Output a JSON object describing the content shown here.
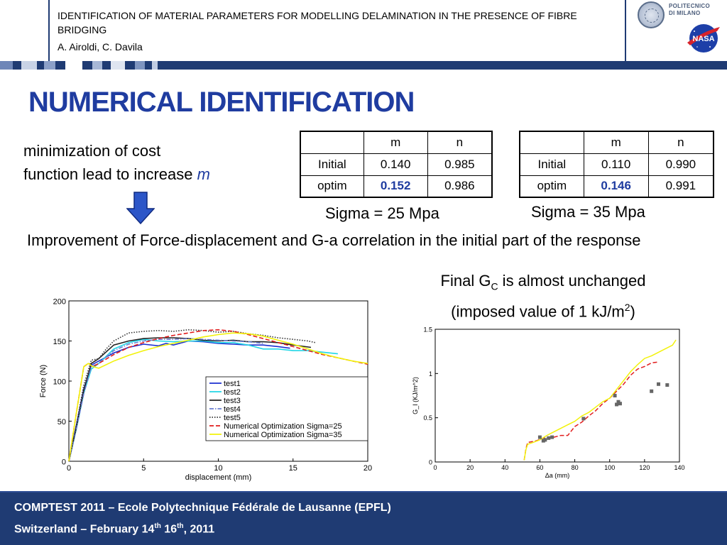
{
  "header": {
    "title": "IDENTIFICATION OF MATERIAL PARAMETERS FOR MODELLING DELAMINATION IN THE PRESENCE OF FIBRE BRIDGING",
    "authors": "A. Airoldi, C. Davila",
    "logo_polimi_line1": "POLITECNICO",
    "logo_polimi_line2": "DI MILANO",
    "logo_nasa": "NASA"
  },
  "slide": {
    "title": "NUMERICAL IDENTIFICATION",
    "minimization_line1": "minimization of cost",
    "minimization_line2": "function lead to increase ",
    "minimization_var": "m",
    "improvement": "Improvement of Force-displacement and G-a correlation in the initial part of the response",
    "final_gc_pre": "Final G",
    "final_gc_sub": "C",
    "final_gc_post": " is almost unchanged",
    "final_gc_line2_pre": "(imposed value of 1 kJ/m",
    "final_gc_line2_sup": "2",
    "final_gc_line2_post": ")"
  },
  "tables": [
    {
      "header": [
        "",
        "m",
        "n"
      ],
      "rows": [
        [
          "Initial",
          "0.140",
          "0.985"
        ],
        [
          "optim",
          "0.152",
          "0.986"
        ]
      ],
      "caption": "Sigma = 25 Mpa"
    },
    {
      "header": [
        "",
        "m",
        "n"
      ],
      "rows": [
        [
          "Initial",
          "0.110",
          "0.990"
        ],
        [
          "optim",
          "0.146",
          "0.991"
        ]
      ],
      "caption": "Sigma = 35 Mpa"
    }
  ],
  "chart_data": [
    {
      "type": "line",
      "xlabel": "displacement (mm)",
      "ylabel": "Force (N)",
      "xlim": [
        0,
        20
      ],
      "ylim": [
        0,
        200
      ],
      "xticks": [
        "0",
        "5",
        "10",
        "15",
        "20"
      ],
      "yticks": [
        "0",
        "50",
        "100",
        "150",
        "200"
      ],
      "legend_position": "bottom-right",
      "series": [
        {
          "name": "test1",
          "color": "#1d2fd0",
          "dash": "solid",
          "x": [
            0,
            0.5,
            1.0,
            1.5,
            2,
            3,
            4,
            5,
            6,
            6.5,
            7,
            8,
            9,
            10,
            11,
            12,
            13,
            14,
            14.8
          ],
          "y": [
            0,
            45,
            90,
            120,
            125,
            135,
            142,
            146,
            144,
            147,
            145,
            150,
            149,
            147,
            146,
            145,
            145,
            143,
            141
          ]
        },
        {
          "name": "test2",
          "color": "#22d6e6",
          "dash": "solid",
          "x": [
            0,
            0.5,
            1.0,
            1.5,
            2,
            3,
            4,
            5,
            6,
            7,
            8,
            9,
            10,
            11,
            12,
            13,
            14,
            15,
            16,
            17,
            18
          ],
          "y": [
            0,
            40,
            85,
            115,
            122,
            140,
            148,
            152,
            150,
            149,
            150,
            150,
            148,
            148,
            145,
            140,
            140,
            138,
            138,
            136,
            134
          ]
        },
        {
          "name": "test3",
          "color": "#222222",
          "dash": "solid",
          "x": [
            0,
            0.5,
            1.0,
            1.5,
            2,
            3,
            4,
            5,
            6,
            7,
            8,
            9,
            10,
            11,
            12,
            13,
            14,
            15,
            16.2
          ],
          "y": [
            0,
            42,
            88,
            122,
            128,
            145,
            150,
            153,
            154,
            154,
            153,
            151,
            150,
            151,
            149,
            149,
            148,
            145,
            142
          ]
        },
        {
          "name": "test4",
          "color": "#6a7fd0",
          "dash": "dashdot",
          "x": [
            0,
            0.5,
            1.0,
            1.5,
            2,
            3,
            4,
            5,
            6,
            7,
            8,
            9,
            10,
            11,
            12,
            13
          ],
          "y": [
            0,
            40,
            84,
            118,
            122,
            138,
            146,
            150,
            152,
            152,
            153,
            152,
            151,
            150,
            149,
            147
          ]
        },
        {
          "name": "test5",
          "color": "#333333",
          "dash": "dotted",
          "x": [
            0,
            0.5,
            1.0,
            1.5,
            2,
            2.5,
            3,
            4,
            5,
            6,
            7,
            8,
            9,
            10,
            11,
            12,
            13,
            14,
            15,
            16,
            16.5
          ],
          "y": [
            0,
            45,
            95,
            126,
            128,
            140,
            150,
            160,
            162,
            163,
            162,
            164,
            163,
            161,
            162,
            159,
            157,
            154,
            152,
            150,
            148
          ]
        },
        {
          "name": "Numerical Optimization Sigma=25",
          "color": "#e11d1d",
          "dash": "dashed",
          "x": [
            0,
            0.5,
            1.0,
            1.3,
            1.6,
            2,
            3,
            4,
            5,
            6,
            7,
            8,
            9,
            10,
            11,
            12,
            13,
            14,
            15,
            16,
            17,
            18,
            19,
            20
          ],
          "y": [
            0,
            60,
            118,
            122,
            118,
            122,
            133,
            142,
            148,
            153,
            157,
            160,
            163,
            164,
            162,
            158,
            153,
            148,
            143,
            138,
            133,
            129,
            125,
            121
          ]
        },
        {
          "name": "Numerical Optimization Sigma=35",
          "color": "#f2f20a",
          "dash": "solid",
          "x": [
            0,
            0.5,
            1.0,
            1.3,
            1.6,
            2,
            3,
            4,
            5,
            6,
            7,
            8,
            9,
            10,
            11,
            12,
            13,
            14,
            15,
            16,
            17,
            18,
            19,
            20
          ],
          "y": [
            0,
            60,
            118,
            122,
            118,
            116,
            125,
            132,
            138,
            143,
            147,
            151,
            155,
            158,
            160,
            159,
            156,
            151,
            146,
            140,
            134,
            129,
            125,
            122
          ]
        }
      ]
    },
    {
      "type": "scatter",
      "xlabel": "Δa (mm)",
      "ylabel": "G_I (KJ/m^2)",
      "xlim": [
        0,
        140
      ],
      "ylim": [
        0,
        1.5
      ],
      "xticks": [
        "0",
        "20",
        "40",
        "60",
        "80",
        "100",
        "120",
        "140"
      ],
      "yticks": [
        "0",
        "0.5",
        "1",
        "1.5"
      ],
      "series": [
        {
          "color": "#e11d1d",
          "dash": "dashed",
          "x": [
            51,
            52,
            53,
            58,
            62,
            68,
            72,
            76,
            80,
            84,
            88,
            92,
            96,
            100,
            104,
            108,
            112,
            116,
            120,
            124,
            128
          ],
          "y": [
            0.02,
            0.15,
            0.22,
            0.24,
            0.27,
            0.28,
            0.3,
            0.3,
            0.4,
            0.45,
            0.52,
            0.58,
            0.66,
            0.72,
            0.8,
            0.88,
            0.98,
            1.05,
            1.08,
            1.12,
            1.13
          ]
        },
        {
          "color": "#f2f20a",
          "dash": "solid",
          "x": [
            51,
            52,
            53,
            56,
            60,
            64,
            68,
            72,
            76,
            80,
            84,
            88,
            92,
            96,
            100,
            104,
            108,
            112,
            116,
            120,
            124,
            128,
            132,
            136,
            138
          ],
          "y": [
            0.02,
            0.14,
            0.2,
            0.22,
            0.25,
            0.3,
            0.34,
            0.38,
            0.42,
            0.46,
            0.52,
            0.56,
            0.62,
            0.68,
            0.72,
            0.82,
            0.92,
            1.02,
            1.1,
            1.17,
            1.2,
            1.24,
            1.28,
            1.32,
            1.38
          ]
        },
        {
          "color": "#666666",
          "marker": "square",
          "x": [
            60,
            62,
            63,
            65,
            67,
            103,
            104,
            105,
            106,
            124,
            128,
            133
          ],
          "y": [
            0.28,
            0.24,
            0.25,
            0.27,
            0.28,
            0.75,
            0.65,
            0.68,
            0.66,
            0.8,
            0.88,
            0.87
          ]
        },
        {
          "color": "#666666",
          "marker": "square",
          "x": [
            85
          ],
          "y": [
            0.49
          ]
        }
      ]
    }
  ],
  "footer": {
    "line1": "COMPTEST 2011 – Ecole Polytechnique Fédérale de Lausanne (EPFL)",
    "line2_pre": "Switzerland – February 14",
    "line2_sup1": "th",
    "line2_mid": " 16",
    "line2_sup2": "th",
    "line2_post": ", 2011"
  },
  "colors": {
    "brand_blue": "#1f3b73",
    "title_blue": "#1f3ca0"
  }
}
